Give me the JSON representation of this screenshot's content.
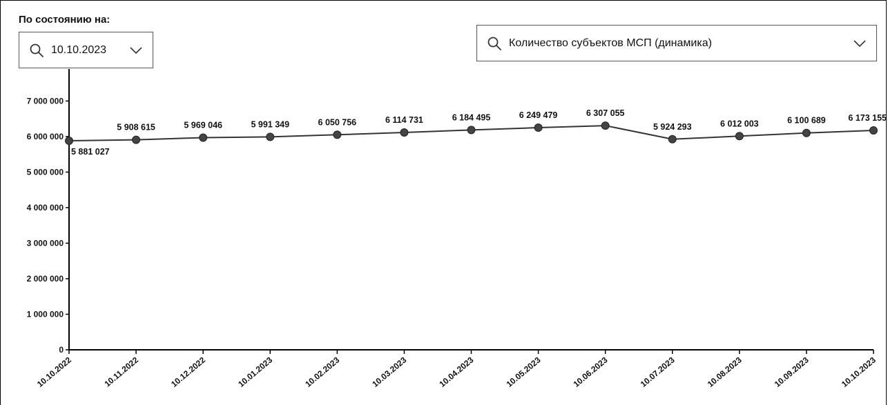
{
  "controls": {
    "date_label": "По состоянию на:",
    "date_value": "10.10.2023",
    "metric_value": "Количество субъектов МСП (динамика)"
  },
  "icons": {
    "search": "search-icon",
    "dropdown": "chevron-down-icon"
  },
  "colors": {
    "line": "#333333",
    "marker": "#444444",
    "axis": "#000000"
  },
  "chart_data": {
    "type": "line",
    "x": [
      "10.10.2022",
      "10.11.2022",
      "10.12.2022",
      "10.01.2023",
      "10.02.2023",
      "10.03.2023",
      "10.04.2023",
      "10.05.2023",
      "10.06.2023",
      "10.07.2023",
      "10.08.2023",
      "10.09.2023",
      "10.10.2023"
    ],
    "values": [
      5881027,
      5908615,
      5969046,
      5991349,
      6050756,
      6114731,
      6184495,
      6249479,
      6307055,
      5924293,
      6012003,
      6100689,
      6173155
    ],
    "data_labels": [
      "5 881 027",
      "5 908 615",
      "5 969 046",
      "5 991 349",
      "6 050 756",
      "6 114 731",
      "6 184 495",
      "6 249 479",
      "6 307 055",
      "5 924 293",
      "6 012 003",
      "6 100 689",
      "6 173 155"
    ],
    "yticks": [
      0,
      1000000,
      2000000,
      3000000,
      4000000,
      5000000,
      6000000,
      7000000
    ],
    "ytick_labels": [
      "0",
      "1 000 000",
      "2 000 000",
      "3 000 000",
      "4 000 000",
      "5 000 000",
      "6 000 000",
      "7 000 000"
    ],
    "ylim": [
      0,
      7900000
    ],
    "grid": false,
    "legend": "none"
  }
}
